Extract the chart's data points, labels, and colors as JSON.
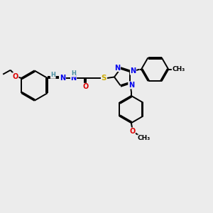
{
  "bg_color": "#ececec",
  "atom_colors": {
    "N": "#0000ee",
    "O": "#dd0000",
    "S": "#ccaa00",
    "C": "#000000",
    "H": "#4a8fa0"
  },
  "figsize": [
    3.0,
    3.0
  ],
  "dpi": 100
}
